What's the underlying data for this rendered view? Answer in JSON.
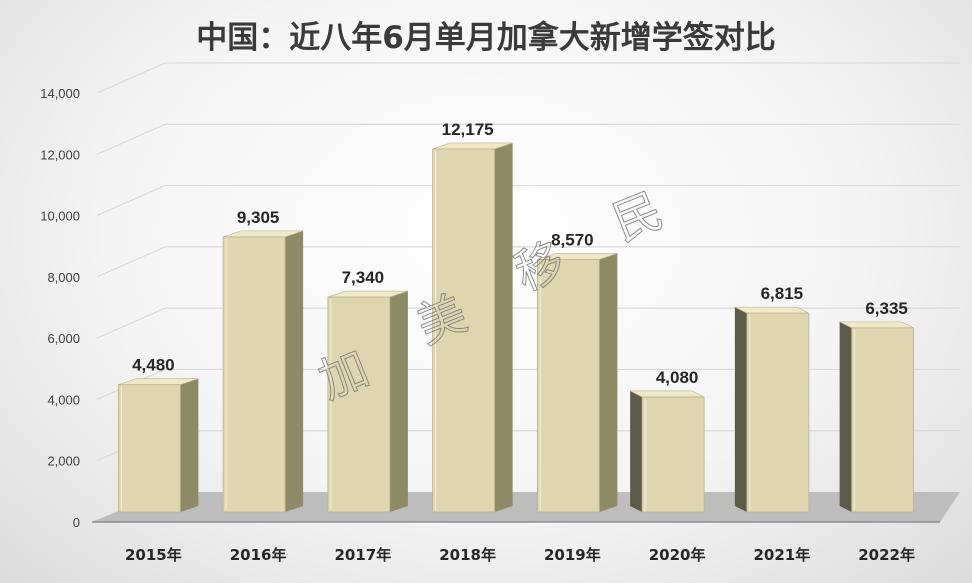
{
  "chart_data": {
    "type": "bar",
    "title": "中国：近八年6月单月加拿大新增学签对比",
    "categories": [
      "2015年",
      "2016年",
      "2017年",
      "2018年",
      "2019年",
      "2020年",
      "2021年",
      "2022年"
    ],
    "values": [
      4480,
      9305,
      7340,
      12175,
      8570,
      4080,
      6815,
      6335
    ],
    "value_labels": [
      "4,480",
      "9,305",
      "7,340",
      "12,175",
      "8,570",
      "4,080",
      "6,815",
      "6,335"
    ],
    "yticks": [
      "0",
      "2,000",
      "4,000",
      "6,000",
      "8,000",
      "10,000",
      "12,000",
      "14,000"
    ],
    "ylim": [
      0,
      14000
    ],
    "xlabel": "",
    "ylabel": "",
    "grid": true,
    "legend": "none",
    "colors": {
      "bar_front": "#ddd6b0",
      "bar_side": "#8f8a66",
      "bar_side_dark": "#5c5a48",
      "floor": "#bdbdbd",
      "gridline": "#d9d9d9"
    }
  },
  "watermark": [
    "加",
    "美",
    "移",
    "民"
  ]
}
